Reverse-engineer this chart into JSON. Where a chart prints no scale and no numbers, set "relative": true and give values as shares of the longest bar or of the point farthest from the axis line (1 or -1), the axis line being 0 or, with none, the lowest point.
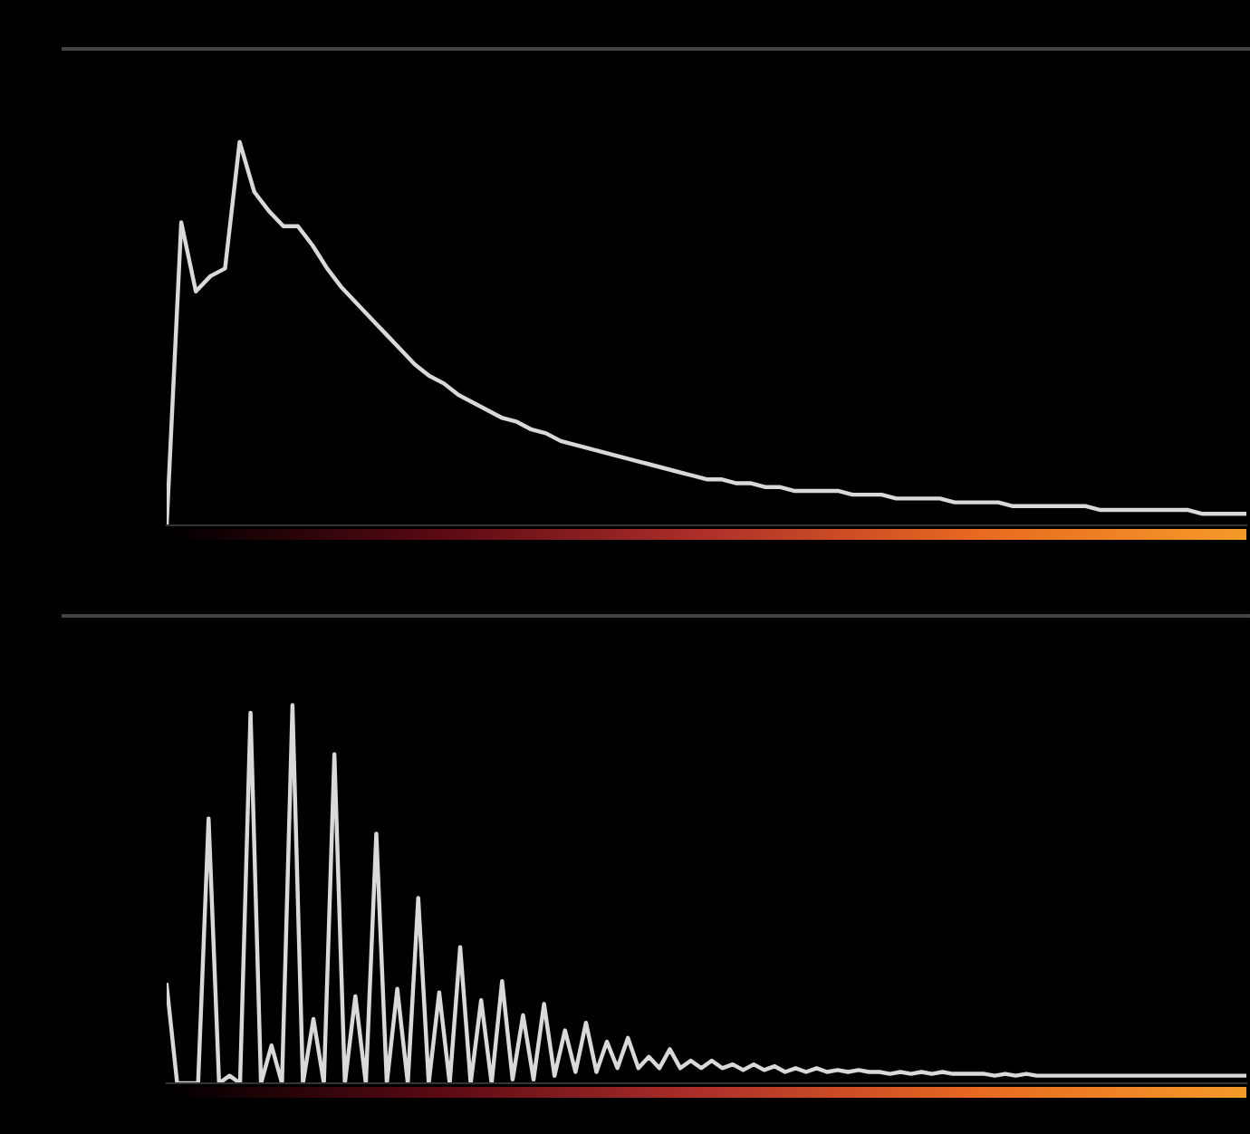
{
  "chart_data": [
    {
      "type": "line",
      "relative": true,
      "categories": [
        null,
        null,
        null,
        null,
        null,
        null,
        null,
        null,
        null,
        null,
        null,
        null,
        null,
        null,
        null,
        null,
        null,
        null,
        null,
        null,
        null,
        null,
        null,
        null,
        null,
        null,
        null,
        null,
        null,
        null,
        null,
        null,
        null,
        null,
        null,
        null,
        null,
        null,
        null,
        null,
        null,
        null,
        null,
        null,
        null,
        null,
        null,
        null,
        null,
        null,
        null,
        null,
        null,
        null,
        null,
        null,
        null,
        null,
        null,
        null,
        null,
        null,
        null,
        null,
        null,
        null,
        null,
        null,
        null,
        null,
        null,
        null,
        null,
        null,
        null
      ],
      "series": [
        {
          "color": "#d9d9d9",
          "values": [
            0,
            0.79,
            0.61,
            0.65,
            0.67,
            1.0,
            0.87,
            0.82,
            0.78,
            0.78,
            0.73,
            0.67,
            0.62,
            0.58,
            0.54,
            0.5,
            0.46,
            0.42,
            0.39,
            0.37,
            0.34,
            0.32,
            0.3,
            0.28,
            0.27,
            0.25,
            0.24,
            0.22,
            0.21,
            0.2,
            0.19,
            0.18,
            0.17,
            0.16,
            0.15,
            0.14,
            0.13,
            0.12,
            0.12,
            0.11,
            0.11,
            0.1,
            0.1,
            0.09,
            0.09,
            0.09,
            0.09,
            0.08,
            0.08,
            0.08,
            0.07,
            0.07,
            0.07,
            0.07,
            0.06,
            0.06,
            0.06,
            0.06,
            0.05,
            0.05,
            0.05,
            0.05,
            0.05,
            0.05,
            0.04,
            0.04,
            0.04,
            0.04,
            0.04,
            0.04,
            0.04,
            0.03,
            0.03,
            0.03,
            0.03
          ]
        }
      ],
      "grid": false,
      "legend": false
    },
    {
      "type": "line",
      "relative": true,
      "categories": [
        null,
        null,
        null,
        null,
        null,
        null,
        null,
        null,
        null,
        null,
        null,
        null,
        null,
        null,
        null,
        null,
        null,
        null,
        null,
        null,
        null,
        null,
        null,
        null,
        null,
        null,
        null,
        null,
        null,
        null,
        null,
        null,
        null,
        null,
        null,
        null,
        null,
        null,
        null,
        null,
        null,
        null,
        null,
        null,
        null,
        null,
        null,
        null,
        null,
        null,
        null,
        null,
        null,
        null,
        null,
        null,
        null,
        null,
        null,
        null,
        null,
        null,
        null,
        null,
        null,
        null,
        null,
        null,
        null,
        null,
        null,
        null,
        null,
        null,
        null,
        null,
        null,
        null,
        null,
        null,
        null,
        null,
        null,
        null,
        null,
        null,
        null,
        null,
        null,
        null,
        null,
        null,
        null,
        null,
        null,
        null,
        null,
        null,
        null,
        null,
        null,
        null,
        null,
        null
      ],
      "series": [
        {
          "color": "#d9d9d9",
          "values": [
            0.26,
            0,
            0,
            0,
            0.7,
            0,
            0.02,
            0,
            0.98,
            0,
            0.1,
            0,
            1.0,
            0,
            0.17,
            0,
            0.87,
            0,
            0.23,
            0,
            0.66,
            0,
            0.25,
            0,
            0.49,
            0,
            0.24,
            0,
            0.36,
            0,
            0.22,
            0,
            0.27,
            0.01,
            0.18,
            0.01,
            0.21,
            0.02,
            0.14,
            0.03,
            0.16,
            0.03,
            0.11,
            0.04,
            0.12,
            0.04,
            0.07,
            0.04,
            0.09,
            0.04,
            0.06,
            0.04,
            0.06,
            0.04,
            0.05,
            0.035,
            0.05,
            0.035,
            0.045,
            0.03,
            0.04,
            0.03,
            0.04,
            0.03,
            0.035,
            0.03,
            0.035,
            0.03,
            0.03,
            0.025,
            0.03,
            0.025,
            0.03,
            0.025,
            0.03,
            0.025,
            0.025,
            0.025,
            0.025,
            0.02,
            0.025,
            0.02,
            0.025,
            0.02,
            0.02,
            0.02,
            0.02,
            0.02,
            0.02,
            0.02,
            0.02,
            0.02,
            0.02,
            0.02,
            0.02,
            0.02,
            0.02,
            0.02,
            0.02,
            0.02,
            0.02,
            0.02,
            0.02,
            0.02
          ]
        }
      ],
      "grid": false,
      "legend": false
    }
  ]
}
